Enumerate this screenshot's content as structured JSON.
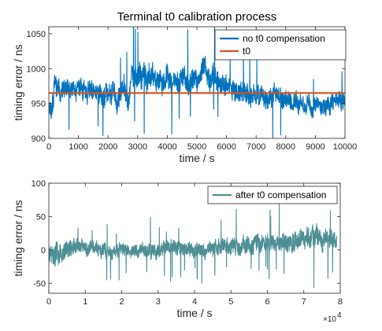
{
  "chart_data": [
    {
      "type": "line",
      "title": "Terminal t0 calibration process",
      "xlabel": "time / s",
      "ylabel": "timing error / ns",
      "xlim": [
        0,
        10000
      ],
      "ylim": [
        900,
        1060
      ],
      "xticks": [
        0,
        1000,
        2000,
        3000,
        4000,
        5000,
        6000,
        7000,
        8000,
        9000,
        10000
      ],
      "xtick_labels": [
        "0",
        "1000",
        "2000",
        "3000",
        "4000",
        "5000",
        "6000",
        "7000",
        "8000",
        "9000",
        "10000"
      ],
      "yticks": [
        900,
        950,
        1000,
        1050
      ],
      "ytick_labels": [
        "900",
        "950",
        "1000",
        "1050"
      ],
      "legend_position": "top-right",
      "series": [
        {
          "name": "no t0 compensation",
          "color": "#0072BD",
          "kind": "noisy-line",
          "x": [
            0,
            100,
            200,
            300,
            500,
            800,
            1000,
            1200,
            1400,
            1600,
            1800,
            2000,
            2200,
            2400,
            2500,
            2600,
            2700,
            2800,
            3000,
            3100,
            3200,
            3400,
            3600,
            3800,
            4000,
            4200,
            4400,
            4600,
            4800,
            5000,
            5200,
            5400,
            5600,
            5800,
            6000,
            6200,
            6400,
            6600,
            6800,
            7000,
            7200,
            7400,
            7600,
            7800,
            8000,
            8200,
            8400,
            8600,
            8800,
            9000,
            9200,
            9400,
            9600,
            9800,
            10000
          ],
          "y_mid": [
            950,
            945,
            985,
            980,
            972,
            970,
            968,
            970,
            965,
            966,
            960,
            962,
            960,
            958,
            975,
            965,
            955,
            990,
            988,
            992,
            995,
            988,
            990,
            985,
            982,
            980,
            982,
            980,
            985,
            982,
            1000,
            990,
            985,
            978,
            975,
            975,
            970,
            965,
            960,
            962,
            958,
            960,
            965,
            960,
            950,
            952,
            955,
            952,
            950,
            945,
            948,
            950,
            952,
            955,
            960
          ],
          "y_amp": [
            20,
            22,
            25,
            25,
            22,
            20,
            20,
            22,
            22,
            20,
            22,
            24,
            25,
            25,
            25,
            22,
            20,
            22,
            24,
            26,
            26,
            24,
            24,
            22,
            22,
            24,
            24,
            22,
            22,
            22,
            22,
            24,
            22,
            22,
            22,
            22,
            22,
            22,
            22,
            20,
            20,
            20,
            20,
            20,
            18,
            18,
            18,
            18,
            18,
            18,
            18,
            18,
            18,
            20,
            20
          ]
        },
        {
          "name": "t0",
          "color": "#D95319",
          "kind": "constant",
          "value": 965
        }
      ]
    },
    {
      "type": "line",
      "title": "",
      "xlabel": "time / s",
      "ylabel": "timing error / ns",
      "xlim": [
        0,
        80000
      ],
      "ylim": [
        -65,
        100
      ],
      "xticks": [
        0,
        10000,
        20000,
        30000,
        40000,
        50000,
        60000,
        70000,
        80000
      ],
      "xtick_labels": [
        "0",
        "1",
        "2",
        "3",
        "4",
        "5",
        "6",
        "7",
        "8"
      ],
      "x_multiplier": "×10",
      "x_multiplier_exp": "4",
      "yticks": [
        -50,
        0,
        50,
        100
      ],
      "ytick_labels": [
        "-50",
        "0",
        "50",
        "100"
      ],
      "legend_position": "top-right",
      "series": [
        {
          "name": "after t0 compensation",
          "color": "#4D8E94",
          "kind": "noisy-line",
          "x": [
            0,
            2000,
            5000,
            8000,
            10000,
            15000,
            20000,
            25000,
            30000,
            35000,
            40000,
            45000,
            50000,
            55000,
            60000,
            65000,
            70000,
            75000,
            79000
          ],
          "y_mid": [
            -5,
            -8,
            0,
            2,
            2,
            0,
            -2,
            0,
            0,
            0,
            2,
            4,
            6,
            8,
            10,
            12,
            16,
            15,
            12
          ],
          "y_amp": [
            20,
            25,
            18,
            16,
            14,
            14,
            14,
            14,
            15,
            15,
            16,
            16,
            16,
            18,
            18,
            20,
            22,
            22,
            20
          ]
        }
      ]
    }
  ]
}
